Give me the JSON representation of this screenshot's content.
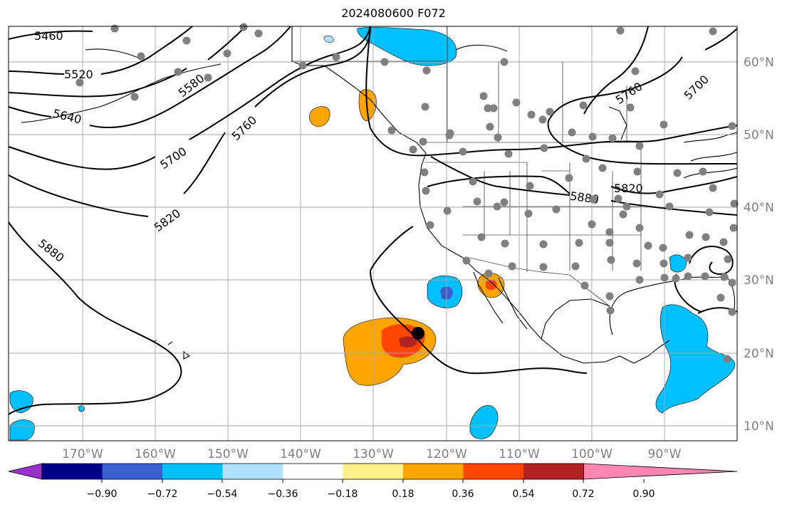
{
  "title": "2024080600 F072",
  "longitude_labels": [
    "170°W",
    "160°W",
    "150°W",
    "140°W",
    "130°W",
    "120°W",
    "110°W",
    "100°W",
    "90°W"
  ],
  "latitude_labels": [
    "60°N",
    "50°N",
    "40°N",
    "30°N",
    "20°N",
    "10°N"
  ],
  "contour_labels": [
    "5460",
    "5520",
    "5580",
    "5640",
    "5700",
    "5760",
    "5820",
    "5880",
    "5880",
    "5760",
    "5700",
    "5880",
    "5820"
  ],
  "colorbar": {
    "tick_labels": [
      "−0.90",
      "−0.72",
      "−0.54",
      "−0.36",
      "−0.18",
      "0.18",
      "0.36",
      "0.54",
      "0.72",
      "0.90"
    ],
    "colors": [
      "#9932cc",
      "#00008b",
      "#3a5fcd",
      "#00bfff",
      "#b0e2ff",
      "#ffffff",
      "#fff08c",
      "#ffa500",
      "#ff4500",
      "#b22222",
      "#ff86b0"
    ]
  },
  "colors": {
    "station_dot": "#808080",
    "marker": "#000000",
    "grid": "#a6a6a6",
    "tick_label": "#808080"
  }
}
